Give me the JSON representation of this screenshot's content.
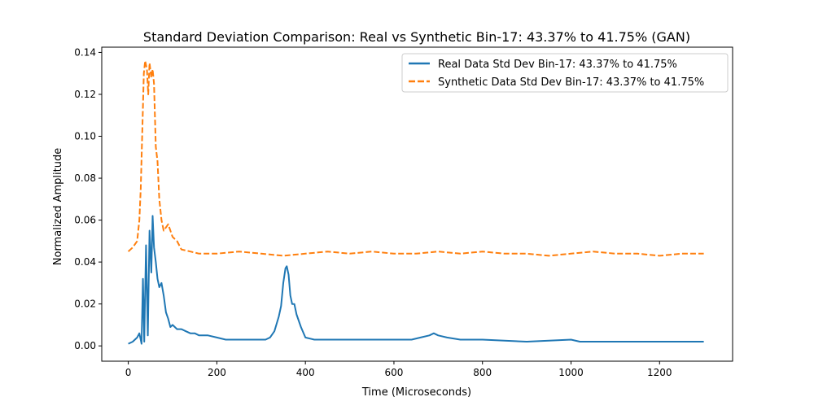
{
  "chart_data": {
    "type": "line",
    "title": "Standard Deviation Comparison: Real vs Synthetic Bin-17: 43.37% to 41.75% (GAN)",
    "xlabel": "Time (Microseconds)",
    "ylabel": "Normalized Amplitude",
    "xlim": [
      -60,
      1365
    ],
    "ylim": [
      -0.0073,
      0.1425
    ],
    "xticks": [
      0,
      200,
      400,
      600,
      800,
      1000,
      1200
    ],
    "yticks": [
      0.0,
      0.02,
      0.04,
      0.06,
      0.08,
      0.1,
      0.12,
      0.14
    ],
    "ytick_labels": [
      "0.00",
      "0.02",
      "0.04",
      "0.06",
      "0.08",
      "0.10",
      "0.12",
      "0.14"
    ],
    "grid": false,
    "legend_position": "top-right",
    "series": [
      {
        "name": "Real Data Std Dev Bin-17: 43.37% to 41.75%",
        "color": "#1f77b4",
        "style": "solid",
        "x": [
          0,
          10,
          20,
          25,
          30,
          33,
          36,
          40,
          44,
          48,
          52,
          55,
          58,
          62,
          66,
          70,
          75,
          80,
          85,
          90,
          95,
          100,
          110,
          120,
          130,
          140,
          150,
          160,
          170,
          180,
          200,
          220,
          250,
          280,
          310,
          320,
          330,
          340,
          345,
          350,
          355,
          358,
          362,
          366,
          370,
          375,
          380,
          390,
          400,
          420,
          450,
          500,
          550,
          600,
          640,
          660,
          680,
          690,
          700,
          720,
          750,
          800,
          900,
          1000,
          1020,
          1040,
          1100,
          1200,
          1300
        ],
        "y": [
          0.001,
          0.002,
          0.004,
          0.006,
          0.001,
          0.032,
          0.002,
          0.048,
          0.005,
          0.055,
          0.035,
          0.062,
          0.047,
          0.04,
          0.032,
          0.028,
          0.03,
          0.024,
          0.016,
          0.013,
          0.009,
          0.01,
          0.008,
          0.008,
          0.007,
          0.006,
          0.006,
          0.005,
          0.005,
          0.005,
          0.004,
          0.003,
          0.003,
          0.003,
          0.003,
          0.004,
          0.007,
          0.014,
          0.019,
          0.03,
          0.037,
          0.038,
          0.034,
          0.024,
          0.02,
          0.02,
          0.015,
          0.009,
          0.004,
          0.003,
          0.003,
          0.003,
          0.003,
          0.003,
          0.003,
          0.004,
          0.005,
          0.006,
          0.005,
          0.004,
          0.003,
          0.003,
          0.002,
          0.003,
          0.002,
          0.002,
          0.002,
          0.002,
          0.002
        ]
      },
      {
        "name": "Synthetic Data Std Dev Bin-17: 43.37% to 41.75%",
        "color": "#ff7f0e",
        "style": "dashed",
        "x": [
          0,
          10,
          20,
          25,
          28,
          32,
          35,
          38,
          42,
          45,
          48,
          52,
          55,
          58,
          62,
          66,
          70,
          75,
          80,
          90,
          100,
          110,
          120,
          140,
          160,
          200,
          250,
          300,
          350,
          400,
          450,
          500,
          550,
          600,
          650,
          700,
          750,
          800,
          850,
          900,
          950,
          1000,
          1050,
          1100,
          1150,
          1200,
          1250,
          1300
        ],
        "y": [
          0.045,
          0.047,
          0.05,
          0.06,
          0.075,
          0.105,
          0.13,
          0.136,
          0.132,
          0.12,
          0.135,
          0.128,
          0.132,
          0.125,
          0.095,
          0.088,
          0.07,
          0.06,
          0.055,
          0.058,
          0.052,
          0.05,
          0.046,
          0.045,
          0.044,
          0.044,
          0.045,
          0.044,
          0.043,
          0.044,
          0.045,
          0.044,
          0.045,
          0.044,
          0.044,
          0.045,
          0.044,
          0.045,
          0.044,
          0.044,
          0.043,
          0.044,
          0.045,
          0.044,
          0.044,
          0.043,
          0.044,
          0.044
        ]
      }
    ]
  }
}
